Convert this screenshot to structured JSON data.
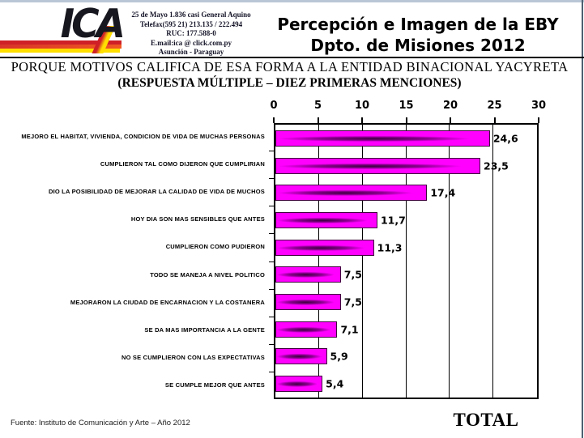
{
  "header": {
    "logo_text": "ICA",
    "address_lines": [
      "25 de Mayo 1.836 casi General Aquino",
      "Telefax(595 21) 213.135 / 222.494",
      "RUC: 177.588-0",
      "E.mail:ica @ click.com.py",
      "Asunción - Paraguay"
    ],
    "title_line1": "Percepción e Imagen de la EBY",
    "title_line2": "Dpto. de Misiones 2012"
  },
  "question": {
    "line1": "PORQUE MOTIVOS CALIFICA DE ESA FORMA A LA ENTIDAD BINACIONAL YACYRETA",
    "line2": "(RESPUESTA MÚLTIPLE – DIEZ PRIMERAS MENCIONES)"
  },
  "chart_data": {
    "type": "bar",
    "orientation": "horizontal",
    "title": "PORQUE MOTIVOS CALIFICA DE ESA FORMA A LA ENTIDAD BINACIONAL YACYRETA (RESPUESTA MÚLTIPLE – DIEZ PRIMERAS MENCIONES)",
    "categories": [
      "MEJORO EL HABITAT, VIVIENDA, CONDICION DE VIDA DE MUCHAS PERSONAS",
      "CUMPLIERON TAL COMO DIJERON QUE CUMPLIRIAN",
      "DIO LA POSIBILIDAD DE MEJORAR LA CALIDAD DE VIDA DE MUCHOS",
      "HOY DIA SON MAS SENSIBLES QUE ANTES",
      "CUMPLIERON COMO PUDIERON",
      "TODO SE MANEJA A NIVEL POLITICO",
      "MEJORARON LA CIUDAD DE ENCARNACION Y LA COSTANERA",
      "SE DA MAS IMPORTANCIA A LA GENTE",
      "NO SE CUMPLIERON CON LAS EXPECTATIVAS",
      "SE CUMPLE MEJOR QUE ANTES"
    ],
    "values": [
      24.6,
      23.5,
      17.4,
      11.7,
      11.3,
      7.5,
      7.5,
      7.1,
      5.9,
      5.4
    ],
    "value_labels": [
      "24,6",
      "23,5",
      "17,4",
      "11,7",
      "11,3",
      "7,5",
      "7,5",
      "7,1",
      "5,9",
      "5,4"
    ],
    "xlim": [
      0,
      30
    ],
    "x_ticks": [
      0,
      5,
      10,
      15,
      20,
      25,
      30
    ],
    "grid": true,
    "legend": "none",
    "bar_color": "#ff00ff",
    "bar_core_color": "#300032",
    "series_label": "TOTAL"
  },
  "footer": {
    "source": "Fuente: Instituto de Comunicación y Arte  – Año 2012",
    "total_label": "TOTAL"
  },
  "colors": {
    "top_edge": "#b9c6d6",
    "right_edge": "#4e6071",
    "stripe_red": "#cf2027",
    "stripe_yellow": "#ffdf00"
  }
}
